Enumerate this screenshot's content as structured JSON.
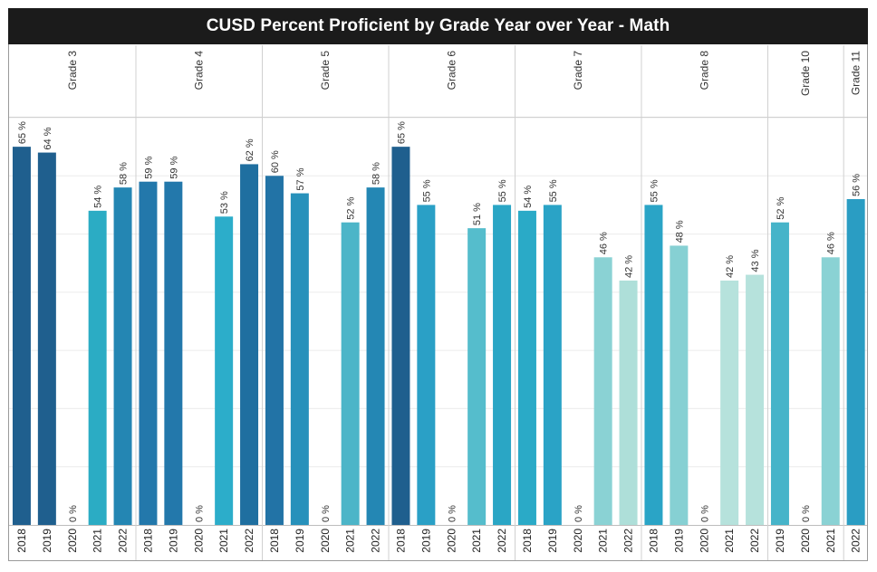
{
  "chart_data": {
    "type": "bar",
    "title": "CUSD Percent Proficient by Grade Year over Year -  Math",
    "ylim": [
      0,
      70
    ],
    "value_suffix": " %",
    "gridlines": true,
    "panels": [
      {
        "grade": "Grade 3",
        "bars": [
          {
            "year": "2018",
            "value": 65,
            "label": "65 %",
            "color": "#1f5f8e"
          },
          {
            "year": "2019",
            "value": 64,
            "label": "64 %",
            "color": "#1f5f8e"
          },
          {
            "year": "2020",
            "value": 0,
            "label": "0 %",
            "color": "#2b7bb0"
          },
          {
            "year": "2021",
            "value": 54,
            "label": "54 %",
            "color": "#2bacc4"
          },
          {
            "year": "2022",
            "value": 58,
            "label": "58 %",
            "color": "#2486b3"
          }
        ]
      },
      {
        "grade": "Grade 4",
        "bars": [
          {
            "year": "2018",
            "value": 59,
            "label": "59 %",
            "color": "#2378ab"
          },
          {
            "year": "2019",
            "value": 59,
            "label": "59 %",
            "color": "#2378ab"
          },
          {
            "year": "2020",
            "value": 0,
            "label": "0 %",
            "color": "#2b7bb0"
          },
          {
            "year": "2021",
            "value": 53,
            "label": "53 %",
            "color": "#2cadca"
          },
          {
            "year": "2022",
            "value": 62,
            "label": "62 %",
            "color": "#1f6fa0"
          }
        ]
      },
      {
        "grade": "Grade 5",
        "bars": [
          {
            "year": "2018",
            "value": 60,
            "label": "60 %",
            "color": "#2273a6"
          },
          {
            "year": "2019",
            "value": 57,
            "label": "57 %",
            "color": "#2791bb"
          },
          {
            "year": "2020",
            "value": 0,
            "label": "0 %",
            "color": "#2b7bb0"
          },
          {
            "year": "2021",
            "value": 52,
            "label": "52 %",
            "color": "#4cb5c8"
          },
          {
            "year": "2022",
            "value": 58,
            "label": "58 %",
            "color": "#2487b4"
          }
        ]
      },
      {
        "grade": "Grade 6",
        "bars": [
          {
            "year": "2018",
            "value": 65,
            "label": "65 %",
            "color": "#1f5f8e"
          },
          {
            "year": "2019",
            "value": 55,
            "label": "55 %",
            "color": "#2aa0c6"
          },
          {
            "year": "2020",
            "value": 0,
            "label": "0 %",
            "color": "#2b7bb0"
          },
          {
            "year": "2021",
            "value": 51,
            "label": "51 %",
            "color": "#55bdcc"
          },
          {
            "year": "2022",
            "value": 55,
            "label": "55 %",
            "color": "#2aa6c5"
          }
        ]
      },
      {
        "grade": "Grade 7",
        "bars": [
          {
            "year": "2018",
            "value": 54,
            "label": "54 %",
            "color": "#2aaac7"
          },
          {
            "year": "2019",
            "value": 55,
            "label": "55 %",
            "color": "#2aa3c6"
          },
          {
            "year": "2020",
            "value": 0,
            "label": "0 %",
            "color": "#2b7bb0"
          },
          {
            "year": "2021",
            "value": 46,
            "label": "46 %",
            "color": "#8ad2d4"
          },
          {
            "year": "2022",
            "value": 42,
            "label": "42 %",
            "color": "#aedfd9"
          }
        ]
      },
      {
        "grade": "Grade 8",
        "bars": [
          {
            "year": "2018",
            "value": 55,
            "label": "55 %",
            "color": "#2aa4c6"
          },
          {
            "year": "2019",
            "value": 48,
            "label": "48 %",
            "color": "#86d0d3"
          },
          {
            "year": "2020",
            "value": 0,
            "label": "0 %",
            "color": "#2b7bb0"
          },
          {
            "year": "2021",
            "value": 42,
            "label": "42 %",
            "color": "#b6e2dc"
          },
          {
            "year": "2022",
            "value": 43,
            "label": "43 %",
            "color": "#b6e2dc"
          }
        ]
      },
      {
        "grade": "Grade 10",
        "bars": [
          {
            "year": "2019",
            "value": 52,
            "label": "52 %",
            "color": "#46b4c9"
          },
          {
            "year": "2020",
            "value": 0,
            "label": "0 %",
            "color": "#2b7bb0"
          },
          {
            "year": "2021",
            "value": 46,
            "label": "46 %",
            "color": "#8ad2d4"
          }
        ]
      },
      {
        "grade": "Grade 11",
        "bars": [
          {
            "year": "2022",
            "value": 56,
            "label": "56 %",
            "color": "#2a9dc3"
          }
        ]
      }
    ]
  }
}
